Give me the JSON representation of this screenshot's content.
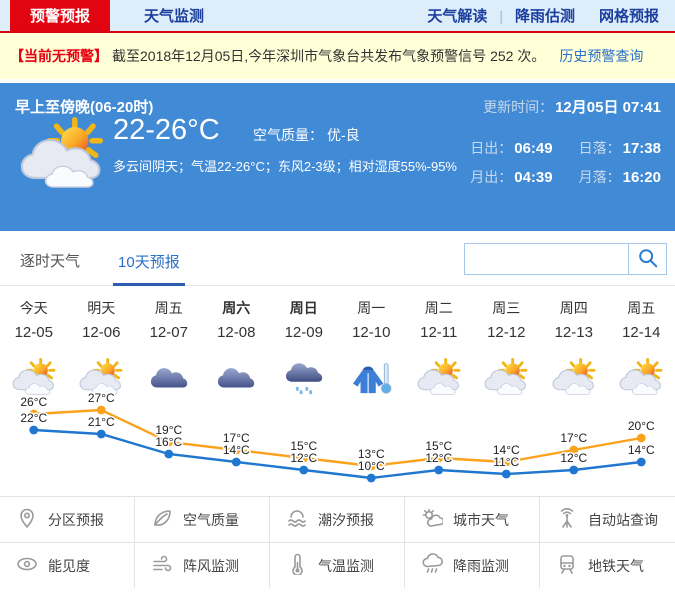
{
  "nav": {
    "brand_tabs": [
      {
        "label": "预警预报",
        "active": true
      },
      {
        "label": "天气监测",
        "active": false
      }
    ],
    "links": [
      "天气解读",
      "降雨估测",
      "网格预报"
    ],
    "separator": "|"
  },
  "alert": {
    "badge": "【当前无预警】",
    "text": "截至2018年12月05日,今年深圳市气象台共发布气象预警信号 252 次。",
    "link": "历史预警查询"
  },
  "current": {
    "period": "早上至傍晚(06-20时)",
    "update_label": "更新时间：",
    "update_value": "12月05日 07:41",
    "icon": "partly-cloudy",
    "temp_range": "22-26°C",
    "air_label": "空气质量：",
    "air_value": "优-良",
    "desc": "多云间阴天；气温22-26°C；东风2-3级；相对湿度55%-95%",
    "sun_moon": [
      {
        "label": "日出：",
        "value": "06:49"
      },
      {
        "label": "日落：",
        "value": "17:38"
      },
      {
        "label": "月出：",
        "value": "04:39"
      },
      {
        "label": "月落：",
        "value": "16:20"
      }
    ]
  },
  "tabs": [
    {
      "label": "逐时天气",
      "active": false
    },
    {
      "label": "10天预报",
      "active": true
    }
  ],
  "search": {
    "placeholder": "",
    "value": ""
  },
  "forecast": {
    "days": [
      {
        "weekday": "今天",
        "date": "12-05",
        "icon": "partly-cloudy",
        "weekend": false
      },
      {
        "weekday": "明天",
        "date": "12-06",
        "icon": "partly-cloudy",
        "weekend": false
      },
      {
        "weekday": "周五",
        "date": "12-07",
        "icon": "cloudy",
        "weekend": false
      },
      {
        "weekday": "周六",
        "date": "12-08",
        "icon": "cloudy",
        "weekend": true
      },
      {
        "weekday": "周日",
        "date": "12-09",
        "icon": "rain",
        "weekend": true
      },
      {
        "weekday": "周一",
        "date": "12-10",
        "icon": "cold",
        "weekend": false
      },
      {
        "weekday": "周二",
        "date": "12-11",
        "icon": "partly-cloudy",
        "weekend": false
      },
      {
        "weekday": "周三",
        "date": "12-12",
        "icon": "partly-cloudy",
        "weekend": false
      },
      {
        "weekday": "周四",
        "date": "12-13",
        "icon": "partly-cloudy",
        "weekend": false
      },
      {
        "weekday": "周五",
        "date": "12-14",
        "icon": "partly-cloudy",
        "weekend": false
      }
    ]
  },
  "chart_data": {
    "type": "line",
    "categories": [
      "12-05",
      "12-06",
      "12-07",
      "12-08",
      "12-09",
      "12-10",
      "12-11",
      "12-12",
      "12-13",
      "12-14"
    ],
    "series": [
      {
        "name": "最高气温",
        "values": [
          26,
          27,
          19,
          17,
          15,
          13,
          15,
          14,
          17,
          20
        ],
        "color": "#faa21b"
      },
      {
        "name": "最低气温",
        "values": [
          22,
          21,
          16,
          14,
          12,
          10,
          12,
          11,
          12,
          14
        ],
        "color": "#1f77d0"
      }
    ],
    "unit": "°C",
    "ylim": [
      10,
      27
    ],
    "grid": false,
    "legend": "none"
  },
  "features": {
    "rows": [
      [
        {
          "icon": "map-pin-icon",
          "label": "分区预报"
        },
        {
          "icon": "leaf-icon",
          "label": "空气质量"
        },
        {
          "icon": "wave-icon",
          "label": "潮汐预报"
        },
        {
          "icon": "city-weather-icon",
          "label": "城市天气"
        },
        {
          "icon": "station-icon",
          "label": "自动站查询"
        }
      ],
      [
        {
          "icon": "eye-icon",
          "label": "能见度"
        },
        {
          "icon": "wind-icon",
          "label": "阵风监测"
        },
        {
          "icon": "thermometer-icon",
          "label": "气温监测"
        },
        {
          "icon": "rain-icon",
          "label": "降雨监测"
        },
        {
          "icon": "train-icon",
          "label": "地铁天气"
        }
      ]
    ]
  },
  "colors": {
    "accent_red": "#e00510",
    "panel_blue": "#418ad5",
    "link_blue": "#2a6fc9",
    "chart_high": "#faa21b",
    "chart_low": "#1f77d0"
  }
}
